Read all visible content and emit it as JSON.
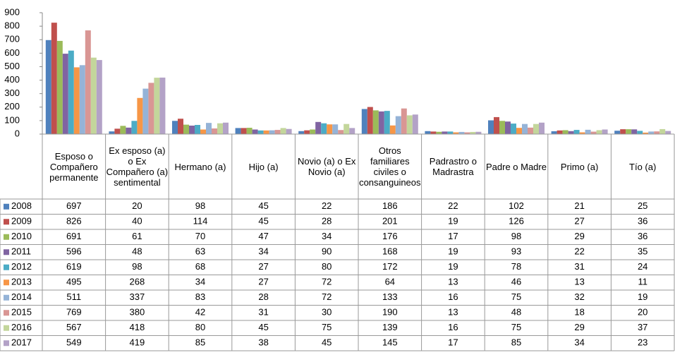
{
  "chart_data": {
    "type": "bar",
    "categories": [
      "Esposo o Compañero permanente",
      "Ex esposo (a) o Ex Compañero (a) sentimental",
      "Hermano (a)",
      "Hijo (a)",
      "Novio (a) o Ex Novio (a)",
      "Otros familiares civiles o consanguineos",
      "Padrastro o Madrastra",
      "Padre o Madre",
      "Primo (a)",
      "Tío (a)"
    ],
    "series": [
      {
        "name": "2008",
        "color": "#4F81BD",
        "values": [
          697,
          20,
          98,
          45,
          22,
          186,
          22,
          102,
          21,
          25
        ]
      },
      {
        "name": "2009",
        "color": "#C0504D",
        "values": [
          826,
          40,
          114,
          45,
          28,
          201,
          19,
          126,
          27,
          36
        ]
      },
      {
        "name": "2010",
        "color": "#9BBB59",
        "values": [
          691,
          61,
          70,
          47,
          34,
          176,
          17,
          98,
          29,
          36
        ]
      },
      {
        "name": "2011",
        "color": "#8064A2",
        "values": [
          596,
          48,
          63,
          34,
          90,
          168,
          19,
          93,
          22,
          35
        ]
      },
      {
        "name": "2012",
        "color": "#4BACC6",
        "values": [
          619,
          98,
          68,
          27,
          80,
          172,
          19,
          78,
          31,
          24
        ]
      },
      {
        "name": "2013",
        "color": "#F79646",
        "values": [
          495,
          268,
          34,
          27,
          72,
          64,
          13,
          46,
          13,
          11
        ]
      },
      {
        "name": "2014",
        "color": "#95B3D7",
        "values": [
          511,
          337,
          83,
          28,
          72,
          133,
          16,
          75,
          32,
          19
        ]
      },
      {
        "name": "2015",
        "color": "#D99694",
        "values": [
          769,
          380,
          42,
          31,
          30,
          190,
          13,
          48,
          18,
          20
        ]
      },
      {
        "name": "2016",
        "color": "#C3D69B",
        "values": [
          567,
          418,
          80,
          45,
          75,
          139,
          16,
          75,
          29,
          37
        ]
      },
      {
        "name": "2017",
        "color": "#B3A2C7",
        "values": [
          549,
          419,
          85,
          38,
          45,
          145,
          17,
          85,
          34,
          23
        ]
      }
    ],
    "ylim": [
      0,
      900
    ],
    "yticks": [
      0,
      100,
      200,
      300,
      400,
      500,
      600,
      700,
      800,
      900
    ],
    "grid": false
  }
}
